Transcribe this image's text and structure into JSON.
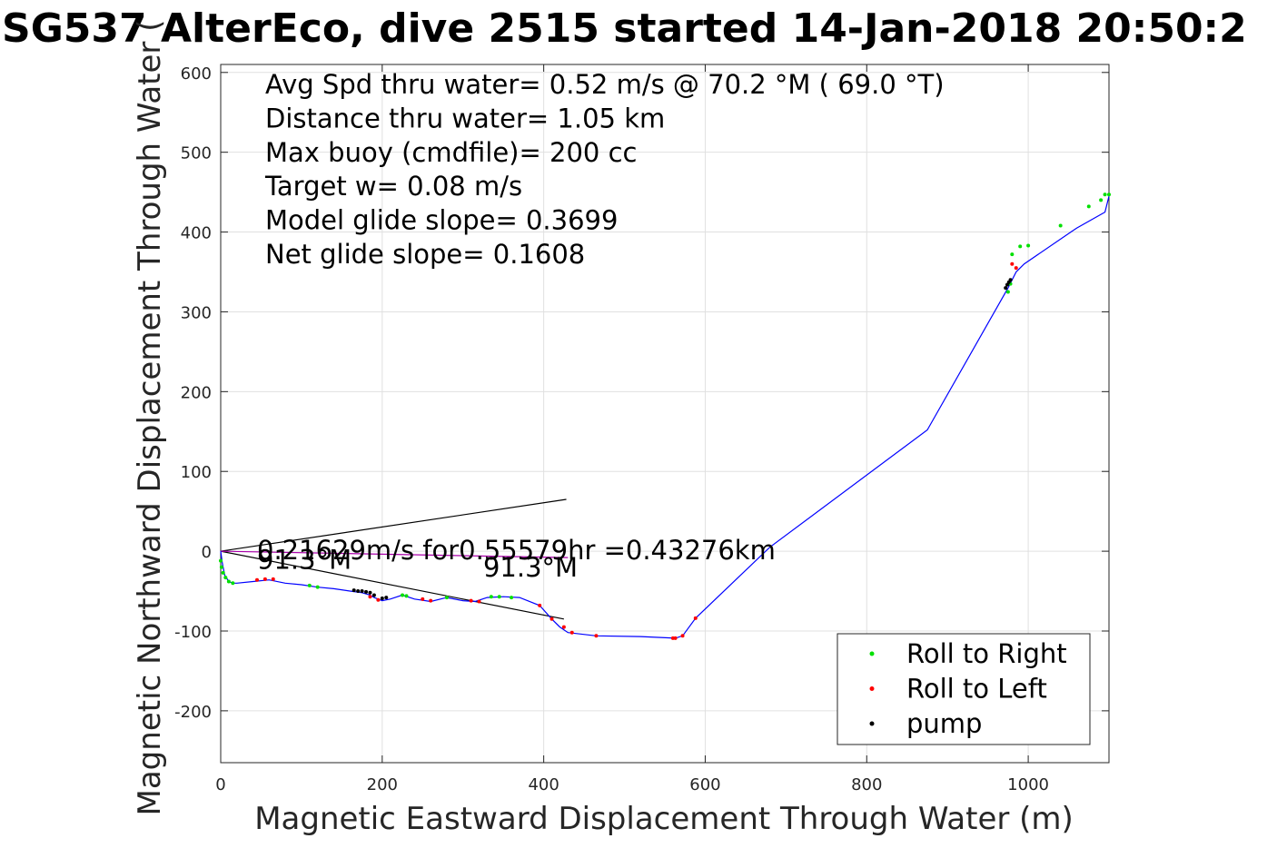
{
  "chart_data": {
    "type": "line",
    "title": "SG537 AlterEco, dive 2515 started 14-Jan-2018 20:50:2",
    "xlabel": "Magnetic Eastward Displacement Through Water (m)",
    "ylabel": "Magnetic Northward Displacement Through Water (",
    "xlim": [
      0,
      1100
    ],
    "ylim": [
      -265,
      610
    ],
    "xticks": [
      0,
      200,
      400,
      600,
      800,
      1000
    ],
    "xtick_labels": [
      "0",
      "200",
      "400",
      "600",
      "800",
      "1000"
    ],
    "yticks": [
      -200,
      -100,
      0,
      100,
      200,
      300,
      400,
      500,
      600
    ],
    "ytick_labels": [
      "-200",
      "-100",
      "0",
      "100",
      "200",
      "300",
      "400",
      "500",
      "600"
    ],
    "grid": true,
    "legend": {
      "placement": "bottom-right",
      "entries": [
        {
          "label": "Roll to Right",
          "color": "#00e000"
        },
        {
          "label": "Roll to Left",
          "color": "#ff0000"
        },
        {
          "label": "pump",
          "color": "#000000"
        }
      ]
    },
    "info_lines": [
      "Avg Spd thru water=  0.52 m/s @  70.2 °M ( 69.0 °T)",
      "Distance thru water=  1.05 km",
      "Max buoy (cmdfile)= 200 cc",
      "Target w= 0.08 m/s",
      "Model glide slope= 0.3699",
      "Net glide slope= 0.1608"
    ],
    "annotations": [
      {
        "text": "0.21629m/s for0.55579hr =0.43276km",
        "x": 45,
        "y": -10
      },
      {
        "text": "91.3°M",
        "x": 45,
        "y": -22
      },
      {
        "text": "91.3°M",
        "x": 325,
        "y": -32
      }
    ],
    "guide_lines": [
      {
        "from": [
          0,
          0
        ],
        "to": [
          428,
          65
        ],
        "color": "#000000"
      },
      {
        "from": [
          0,
          0
        ],
        "to": [
          425,
          -85
        ],
        "color": "#000000"
      },
      {
        "from": [
          0,
          0
        ],
        "to": [
          430,
          -8
        ],
        "color": "#aa00aa"
      }
    ],
    "track": {
      "color": "#0000ff",
      "x": [
        0,
        2,
        5,
        10,
        15,
        20,
        40,
        60,
        80,
        100,
        120,
        140,
        160,
        175,
        185,
        190,
        200,
        210,
        225,
        240,
        260,
        280,
        300,
        315,
        330,
        350,
        370,
        395,
        410,
        420,
        430,
        465,
        520,
        563,
        572,
        588,
        680,
        875,
        975,
        980,
        985,
        995,
        1060,
        1095,
        1100
      ],
      "y": [
        0,
        -15,
        -30,
        -38,
        -40,
        -40,
        -38,
        -36,
        -40,
        -42,
        -45,
        -47,
        -50,
        -52,
        -55,
        -58,
        -62,
        -60,
        -55,
        -60,
        -63,
        -58,
        -62,
        -63,
        -58,
        -57,
        -58,
        -68,
        -85,
        -95,
        -102,
        -106,
        -107,
        -109,
        -106,
        -84,
        5,
        152,
        330,
        340,
        350,
        360,
        405,
        425,
        445
      ]
    },
    "right_roll_points": {
      "x": [
        0,
        1,
        3,
        6,
        10,
        15,
        110,
        120,
        225,
        230,
        280,
        335,
        345,
        360,
        975,
        978,
        980,
        990,
        1000,
        1040,
        1075,
        1090,
        1095,
        1100
      ],
      "y": [
        -12,
        -20,
        -27,
        -33,
        -38,
        -40,
        -43,
        -45,
        -55,
        -56,
        -58,
        -57,
        -57,
        -58,
        325,
        335,
        372,
        382,
        383,
        408,
        432,
        440,
        447,
        447
      ]
    },
    "left_roll_points": {
      "x": [
        45,
        55,
        65,
        185,
        195,
        250,
        260,
        310,
        320,
        395,
        410,
        425,
        435,
        465,
        560,
        563,
        572,
        588,
        980,
        985
      ],
      "y": [
        -36,
        -35,
        -35,
        -57,
        -61,
        -60,
        -62,
        -62,
        -63,
        -68,
        -85,
        -95,
        -102,
        -106,
        -109,
        -109,
        -106,
        -84,
        360,
        355
      ]
    },
    "pump_points": {
      "x": [
        165,
        170,
        175,
        180,
        185,
        190,
        200,
        205,
        972,
        974,
        976,
        978
      ],
      "y": [
        -49,
        -50,
        -50,
        -51,
        -52,
        -55,
        -59,
        -58,
        330,
        334,
        337,
        340
      ]
    }
  }
}
